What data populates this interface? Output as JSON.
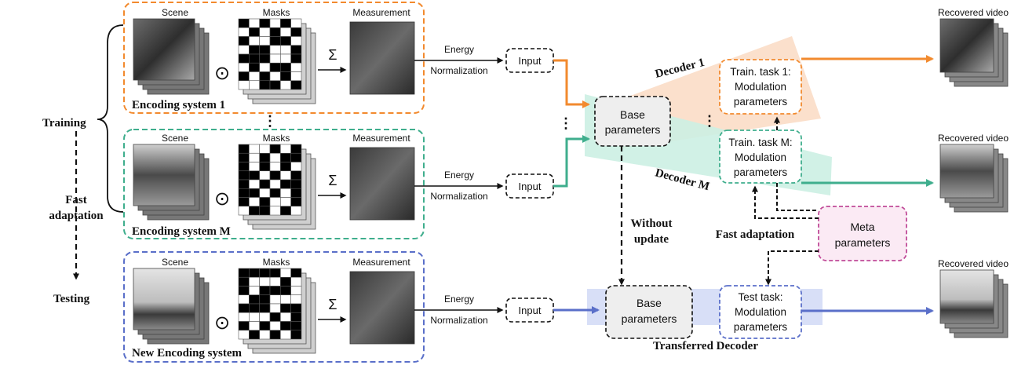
{
  "colors": {
    "orange": "#f28a2e",
    "teal": "#3fae8d",
    "blue": "#5a6fc9",
    "pink": "#c04b98",
    "orange_band": "#fbe0cc",
    "teal_band": "#ccefe3",
    "blue_band": "#d8dff7",
    "meta_fill": "#fbeaf4",
    "base_fill": "#eeeeee"
  },
  "left": {
    "training": "Training",
    "fast_adaptation": "Fast\nadaptation",
    "testing": "Testing"
  },
  "systems": [
    {
      "id": "sys1",
      "title": "Encoding system 1",
      "scene_label": "Scene",
      "masks_label": "Masks",
      "measurement_label": "Measurement",
      "color": "orange"
    },
    {
      "id": "sysM",
      "title": "Encoding system M",
      "scene_label": "Scene",
      "masks_label": "Masks",
      "measurement_label": "Measurement",
      "color": "teal"
    },
    {
      "id": "sysN",
      "title": "New Encoding system",
      "scene_label": "Scene",
      "masks_label": "Masks",
      "measurement_label": "Measurement",
      "color": "blue"
    }
  ],
  "ops": {
    "odot": "⊙",
    "sum": "Σ"
  },
  "energy": {
    "line1": "Energy",
    "line2": "Normalization"
  },
  "input_label": "Input",
  "base": {
    "line1": "Base",
    "line2": "parameters"
  },
  "decoder1": "Decoder 1",
  "decoderM": "Decoder M",
  "task1": {
    "line1": "Train. task 1:",
    "line2": "Modulation",
    "line3": "parameters"
  },
  "taskM": {
    "line1": "Train. task M:",
    "line2": "Modulation",
    "line3": "parameters"
  },
  "test_task": {
    "line1": "Test task:",
    "line2": "Modulation",
    "line3": "parameters"
  },
  "meta": {
    "line1": "Meta",
    "line2": "parameters"
  },
  "without_update": {
    "line1": "Without",
    "line2": "update"
  },
  "fast_adaptation_label": "Fast adaptation",
  "transferred_decoder": "Transferred Decoder",
  "recovered_video": "Recovered video",
  "ellipsis": "⋮"
}
